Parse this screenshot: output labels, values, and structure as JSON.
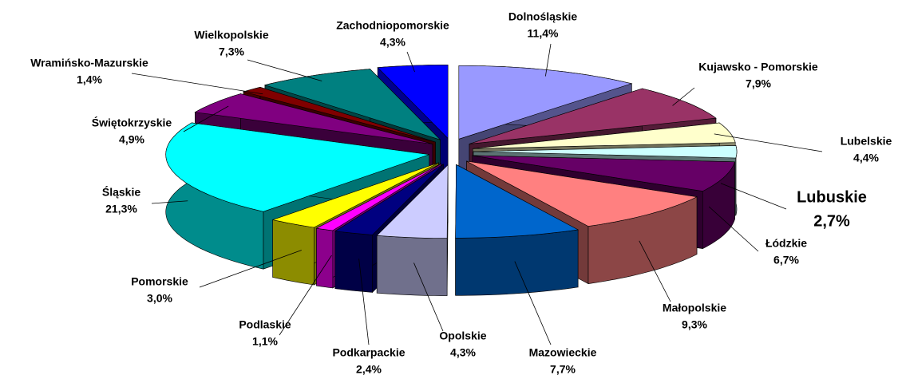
{
  "chart_data": {
    "type": "pie",
    "categories": [
      "Dolnośląskie",
      "Kujawsko - Pomorskie",
      "Lubelskie",
      "Lubuskie",
      "Łódzkie",
      "Małopolskie",
      "Mazowieckie",
      "Opolskie",
      "Podkarpackie",
      "Podlaskie",
      "Pomorskie",
      "Śląskie",
      "Świętokrzyskie",
      "Wramińsko-Mazurskie",
      "Wielkopolskie",
      "Zachodniopomorskie"
    ],
    "values": [
      11.4,
      7.9,
      4.4,
      2.7,
      6.7,
      9.3,
      7.7,
      4.3,
      2.4,
      1.1,
      3.0,
      21.3,
      4.9,
      1.4,
      7.3,
      4.3
    ],
    "value_labels": [
      "11,4%",
      "7,9%",
      "4,4%",
      "2,7%",
      "6,7%",
      "9,3%",
      "7,7%",
      "4,3%",
      "2,4%",
      "1,1%",
      "3,0%",
      "21,3%",
      "4,9%",
      "1,4%",
      "7,3%",
      "4,3%"
    ],
    "colors": [
      "#9999ff",
      "#993366",
      "#ffffcc",
      "#ccffff",
      "#660066",
      "#ff8080",
      "#0066cc",
      "#ccccff",
      "#000080",
      "#ff00ff",
      "#ffff00",
      "#00ffff",
      "#800080",
      "#800000",
      "#008080",
      "#0000ff"
    ]
  }
}
